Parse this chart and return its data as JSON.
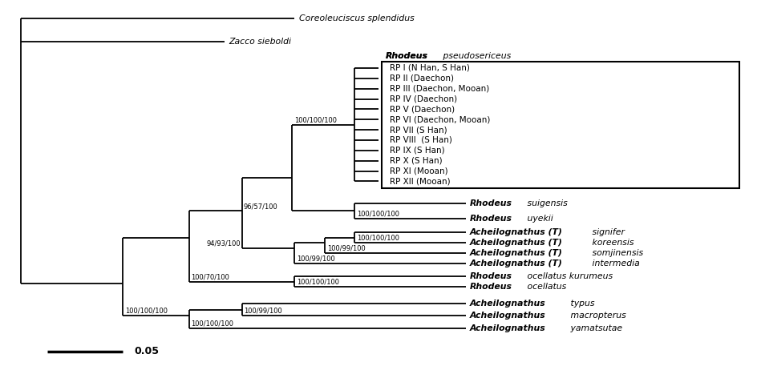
{
  "fig_width": 9.45,
  "fig_height": 4.62,
  "bg_color": "#ffffff",
  "rp_samples": [
    "RP I (N Han, S Han)",
    "RP II (Daechon)",
    "RP III (Daechon, Mooan)",
    "RP IV (Daechon)",
    "RP V (Daechon)",
    "RP VI (Daechon, Mooan)",
    "RP VII (S Han)",
    "RP VIII  (S Han)",
    "RP IX (S Han)",
    "RP X (S Han)",
    "RP XI (Mooan)",
    "RP XII (Mooan)"
  ]
}
